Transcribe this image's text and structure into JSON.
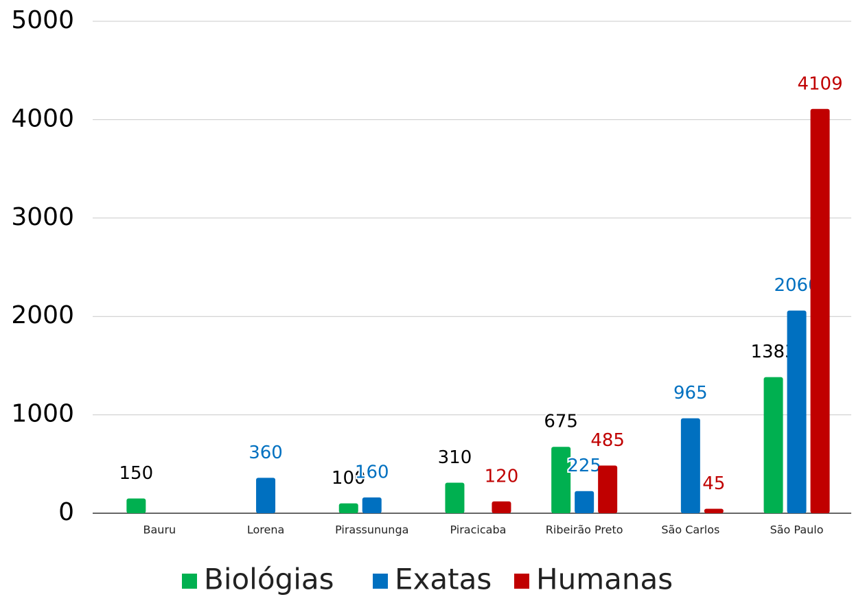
{
  "chart_data": {
    "type": "bar",
    "categories": [
      "Bauru",
      "Lorena",
      "Pirassununga",
      "Piracicaba",
      "Ribeirão Preto",
      "São Carlos",
      "São Paulo"
    ],
    "series": [
      {
        "name": "Biológias",
        "color": "#00b050",
        "label_color": "#000000",
        "values": [
          150,
          null,
          100,
          310,
          675,
          null,
          1383
        ]
      },
      {
        "name": "Exatas",
        "color": "#0070c0",
        "label_color": "#0070c0",
        "values": [
          null,
          360,
          160,
          null,
          225,
          965,
          2060
        ]
      },
      {
        "name": "Humanas",
        "color": "#c00000",
        "label_color": "#c00000",
        "values": [
          null,
          null,
          null,
          120,
          485,
          45,
          4109
        ]
      }
    ],
    "ylim": [
      0,
      5000
    ],
    "yticks": [
      0,
      1000,
      2000,
      3000,
      4000,
      5000
    ],
    "grid": true,
    "legend": "bottom"
  }
}
